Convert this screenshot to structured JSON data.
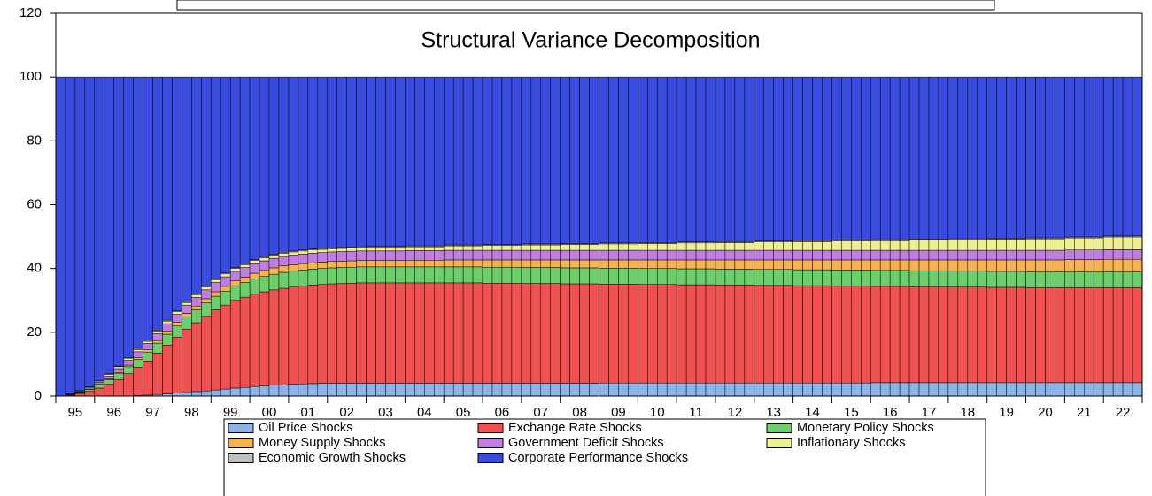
{
  "chart_data": {
    "type": "stacked-bar",
    "title": "Structural Variance Decomposition",
    "categories": [
      "95",
      null,
      null,
      null,
      "96",
      null,
      null,
      null,
      "97",
      null,
      null,
      null,
      "98",
      null,
      null,
      null,
      "99",
      null,
      null,
      null,
      "00",
      null,
      null,
      null,
      "01",
      null,
      null,
      null,
      "02",
      null,
      null,
      null,
      "03",
      null,
      null,
      null,
      "04",
      null,
      null,
      null,
      "05",
      null,
      null,
      null,
      "06",
      null,
      null,
      null,
      "07",
      null,
      null,
      null,
      "08",
      null,
      null,
      null,
      "09",
      null,
      null,
      null,
      "10",
      null,
      null,
      null,
      "11",
      null,
      null,
      null,
      "12",
      null,
      null,
      null,
      "13",
      null,
      null,
      null,
      "14",
      null,
      null,
      null,
      "15",
      null,
      null,
      null,
      "16",
      null,
      null,
      null,
      "17",
      null,
      null,
      null,
      "18",
      null,
      null,
      null,
      "19",
      null,
      null,
      null,
      "20",
      null,
      null,
      null,
      "21",
      null,
      null,
      null,
      "22",
      null,
      null,
      null
    ],
    "ylim": [
      0,
      120
    ],
    "yticks": [
      0,
      20,
      40,
      60,
      80,
      100,
      120
    ],
    "grid": false,
    "series": [
      {
        "name": "Oil Price Shocks",
        "color": "#8db4e8",
        "values": [
          0,
          0,
          0,
          0,
          0,
          0,
          0,
          0,
          0.2,
          0.3,
          0.5,
          0.7,
          0.9,
          1.1,
          1.4,
          1.6,
          1.9,
          2.2,
          2.5,
          2.7,
          3,
          3.2,
          3.4,
          3.5,
          3.7,
          3.8,
          3.9,
          4,
          4,
          4,
          4,
          4,
          4,
          4,
          4,
          4,
          4,
          4,
          4,
          4,
          4,
          4,
          4,
          4,
          4,
          4,
          4,
          4,
          4,
          4,
          4,
          4,
          4,
          4,
          4,
          4,
          4.1,
          4.1,
          4.1,
          4.1,
          4.1,
          4.1,
          4.1,
          4.1,
          4.1,
          4.1,
          4.1,
          4.1,
          4.1,
          4.1,
          4.1,
          4.1,
          4.1,
          4.1,
          4.1,
          4.1,
          4.1,
          4.1,
          4.1,
          4.1,
          4.1,
          4.1,
          4.1,
          4.1,
          4.2,
          4.2,
          4.2,
          4.2,
          4.2,
          4.2,
          4.2,
          4.2,
          4.2,
          4.2,
          4.2,
          4.2,
          4.2,
          4.2,
          4.2,
          4.2,
          4.2,
          4.2,
          4.2,
          4.2,
          4.2,
          4.2,
          4.2,
          4.2,
          4.2,
          4.2,
          4.2,
          4.2
        ]
      },
      {
        "name": "Exchange Rate Shocks",
        "color": "#f05252",
        "values": [
          0,
          0.3,
          0.8,
          1.5,
          2.5,
          3.7,
          5.2,
          7,
          8.8,
          10.7,
          13,
          15.3,
          17.6,
          19.9,
          21.6,
          23.4,
          25.1,
          26.3,
          27.5,
          28.3,
          29,
          29.5,
          29.9,
          30.3,
          30.5,
          30.7,
          30.9,
          31,
          31.2,
          31.3,
          31.4,
          31.5,
          31.5,
          31.5,
          31.5,
          31.5,
          31.5,
          31.5,
          31.5,
          31.5,
          31.5,
          31.5,
          31.5,
          31.5,
          31.4,
          31.4,
          31.4,
          31.4,
          31.3,
          31.3,
          31.3,
          31.3,
          31.2,
          31.2,
          31.2,
          31.2,
          31,
          31,
          31,
          31,
          30.9,
          30.9,
          30.9,
          30.9,
          30.8,
          30.8,
          30.8,
          30.8,
          30.7,
          30.7,
          30.7,
          30.7,
          30.6,
          30.6,
          30.6,
          30.6,
          30.5,
          30.5,
          30.5,
          30.5,
          30.4,
          30.4,
          30.4,
          30.4,
          30.2,
          30.2,
          30.2,
          30.2,
          30.1,
          30.1,
          30.1,
          30.1,
          30,
          30,
          30,
          30,
          29.9,
          29.9,
          29.9,
          29.9,
          29.8,
          29.8,
          29.8,
          29.8,
          29.8,
          29.8,
          29.8,
          29.8,
          29.8,
          29.8,
          29.8,
          29.8
        ]
      },
      {
        "name": "Monetary Policy Shocks",
        "color": "#6ccf6c",
        "values": [
          0,
          0.2,
          0.4,
          0.6,
          1,
          1.4,
          1.8,
          2.2,
          2.5,
          2.8,
          3.1,
          3.4,
          3.6,
          3.8,
          4,
          4.2,
          4.3,
          4.4,
          4.5,
          4.6,
          4.7,
          4.8,
          4.9,
          5,
          5,
          5,
          5,
          5,
          5,
          5,
          5,
          5,
          5,
          5,
          5,
          5,
          5,
          5,
          5,
          5,
          5,
          5,
          5,
          5,
          5,
          5,
          5,
          5,
          5,
          5,
          5,
          5,
          5,
          5,
          5,
          5,
          5,
          5,
          5,
          5,
          5,
          5,
          5,
          5,
          5,
          5,
          5,
          5,
          5,
          5,
          5,
          5,
          5,
          5,
          5,
          5,
          5,
          5,
          5,
          5,
          5,
          5,
          5,
          5,
          5,
          5,
          5,
          5,
          5,
          5,
          5,
          5,
          5,
          5,
          5,
          5,
          5,
          5,
          5,
          5,
          5,
          5,
          5,
          5,
          5,
          5,
          5,
          5,
          5,
          5,
          5,
          5
        ]
      },
      {
        "name": "Money Supply Shocks",
        "color": "#f5b24f",
        "values": [
          0,
          0,
          0.1,
          0.1,
          0.2,
          0.3,
          0.4,
          0.5,
          0.6,
          0.7,
          0.8,
          0.9,
          1,
          1.1,
          1.2,
          1.3,
          1.4,
          1.5,
          1.6,
          1.7,
          1.8,
          1.9,
          2,
          2,
          2,
          2,
          2,
          2,
          2,
          2,
          2,
          2,
          2,
          2,
          2,
          2,
          2.1,
          2.1,
          2.1,
          2.1,
          2.2,
          2.2,
          2.2,
          2.2,
          2.3,
          2.3,
          2.3,
          2.3,
          2.4,
          2.4,
          2.4,
          2.4,
          2.5,
          2.5,
          2.5,
          2.5,
          2.6,
          2.6,
          2.6,
          2.6,
          2.7,
          2.7,
          2.7,
          2.7,
          2.8,
          2.8,
          2.8,
          2.8,
          2.9,
          2.9,
          2.9,
          2.9,
          3,
          3,
          3,
          3,
          3.1,
          3.1,
          3.1,
          3.1,
          3.2,
          3.2,
          3.2,
          3.2,
          3.3,
          3.3,
          3.3,
          3.3,
          3.4,
          3.4,
          3.4,
          3.4,
          3.5,
          3.5,
          3.5,
          3.5,
          3.6,
          3.6,
          3.6,
          3.6,
          3.7,
          3.7,
          3.7,
          3.7,
          3.8,
          3.8,
          3.8,
          3.8,
          3.9,
          3.9,
          3.9,
          3.9
        ]
      },
      {
        "name": "Government Deficit Shocks",
        "color": "#c07ee0",
        "values": [
          0,
          0.1,
          0.2,
          0.4,
          0.6,
          0.9,
          1.2,
          1.5,
          1.8,
          2,
          2.2,
          2.4,
          2.5,
          2.6,
          2.7,
          2.8,
          2.9,
          3,
          3,
          3,
          3,
          3,
          3,
          3,
          3,
          3,
          3,
          3,
          3,
          3,
          3,
          3,
          3,
          3,
          3,
          3,
          3,
          3,
          3,
          3,
          3,
          3,
          3,
          3,
          3,
          3,
          3,
          3,
          3,
          3,
          3,
          3,
          3,
          3,
          3,
          3,
          3,
          3,
          3,
          3,
          3,
          3,
          3,
          3,
          3,
          3,
          3,
          3,
          3,
          3,
          3,
          3,
          3,
          3,
          3,
          3,
          3,
          3,
          3,
          3,
          3,
          3,
          3,
          3,
          3,
          3,
          3,
          3,
          3,
          3,
          3,
          3,
          3,
          3,
          3,
          3,
          3,
          3,
          3,
          3,
          3,
          3,
          3,
          3,
          3,
          3,
          3,
          3,
          3,
          3,
          3,
          3
        ]
      },
      {
        "name": "Inflationary Shocks",
        "color": "#eeee92",
        "values": [
          0,
          0.1,
          0.2,
          0.3,
          0.4,
          0.5,
          0.6,
          0.7,
          0.7,
          0.7,
          0.8,
          0.8,
          0.8,
          0.8,
          0.9,
          0.9,
          0.9,
          0.9,
          0.9,
          0.9,
          1,
          1,
          1,
          1,
          1,
          1,
          1,
          1,
          1,
          1,
          1,
          1,
          1.1,
          1.1,
          1.1,
          1.1,
          1.2,
          1.2,
          1.2,
          1.2,
          1.4,
          1.4,
          1.4,
          1.4,
          1.5,
          1.5,
          1.5,
          1.5,
          1.7,
          1.7,
          1.7,
          1.7,
          1.8,
          1.8,
          1.8,
          1.8,
          2,
          2,
          2,
          2,
          2.1,
          2.1,
          2.1,
          2.1,
          2.3,
          2.3,
          2.3,
          2.3,
          2.4,
          2.4,
          2.4,
          2.4,
          2.6,
          2.6,
          2.6,
          2.6,
          2.7,
          2.7,
          2.7,
          2.7,
          2.9,
          2.9,
          2.9,
          2.9,
          3,
          3,
          3,
          3,
          3.2,
          3.2,
          3.2,
          3.2,
          3.3,
          3.3,
          3.3,
          3.3,
          3.5,
          3.5,
          3.5,
          3.5,
          3.6,
          3.6,
          3.6,
          3.6,
          3.8,
          3.8,
          3.8,
          3.8,
          4,
          4,
          4,
          4
        ]
      },
      {
        "name": "Economic Growth Shocks",
        "color": "#c0c0c0",
        "values": [
          0,
          0,
          0,
          0.1,
          0.1,
          0.2,
          0.2,
          0.2,
          0.3,
          0.3,
          0.3,
          0.3,
          0.3,
          0.3,
          0.3,
          0.3,
          0.3,
          0.3,
          0.3,
          0.3,
          0.3,
          0.3,
          0.3,
          0.3,
          0.3,
          0.3,
          0.3,
          0.3,
          0.3,
          0.3,
          0.3,
          0.3,
          0.3,
          0.3,
          0.3,
          0.3,
          0.3,
          0.3,
          0.3,
          0.3,
          0.3,
          0.3,
          0.3,
          0.3,
          0.3,
          0.3,
          0.3,
          0.3,
          0.3,
          0.3,
          0.3,
          0.3,
          0.3,
          0.3,
          0.3,
          0.3,
          0.3,
          0.3,
          0.3,
          0.3,
          0.3,
          0.3,
          0.3,
          0.3,
          0.3,
          0.3,
          0.3,
          0.3,
          0.3,
          0.3,
          0.3,
          0.3,
          0.3,
          0.3,
          0.3,
          0.3,
          0.3,
          0.3,
          0.3,
          0.3,
          0.3,
          0.3,
          0.3,
          0.3,
          0.3,
          0.3,
          0.3,
          0.3,
          0.3,
          0.3,
          0.3,
          0.3,
          0.3,
          0.3,
          0.3,
          0.3,
          0.3,
          0.3,
          0.3,
          0.3,
          0.3,
          0.3,
          0.3,
          0.3,
          0.3,
          0.3,
          0.3,
          0.3,
          0.3,
          0.3,
          0.3,
          0.3
        ]
      },
      {
        "name": "Corporate Performance Shocks",
        "color": "#3a4ce0",
        "values": [
          100,
          99.3,
          98.3,
          97,
          95.2,
          93,
          90.6,
          87.9,
          85.1,
          82.5,
          79.3,
          76.2,
          73.3,
          70.4,
          67.9,
          65.5,
          63.2,
          61.4,
          59.7,
          58.5,
          57.2,
          56.3,
          55.5,
          54.9,
          54.5,
          54.2,
          53.9,
          53.7,
          53.5,
          53.4,
          53.3,
          53.2,
          53.1,
          53.1,
          53.1,
          53.1,
          52.9,
          52.9,
          52.9,
          52.9,
          52.6,
          52.6,
          52.6,
          52.6,
          52.5,
          52.5,
          52.5,
          52.5,
          52.3,
          52.3,
          52.3,
          52.3,
          52.2,
          52.2,
          52.2,
          52.2,
          52,
          52,
          52,
          52,
          51.9,
          51.9,
          51.9,
          51.9,
          51.7,
          51.7,
          51.7,
          51.7,
          51.6,
          51.6,
          51.6,
          51.6,
          51.4,
          51.4,
          51.4,
          51.4,
          51.3,
          51.3,
          51.3,
          51.3,
          51.1,
          51.1,
          51.1,
          51.1,
          51,
          51,
          51,
          51,
          50.8,
          50.8,
          50.8,
          50.8,
          50.7,
          50.7,
          50.7,
          50.7,
          50.5,
          50.5,
          50.5,
          50.5,
          50.4,
          50.4,
          50.4,
          50.4,
          50.1,
          50.1,
          50.1,
          50.1,
          49.8,
          49.8,
          49.8,
          49.8
        ]
      }
    ]
  }
}
